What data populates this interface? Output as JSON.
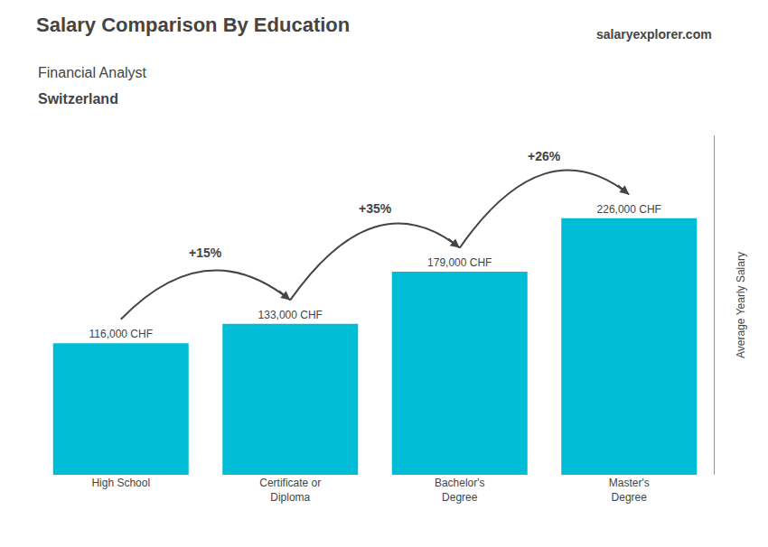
{
  "chart_data": {
    "type": "bar",
    "title": "Salary Comparison By Education",
    "subtitle": [
      "Financial Analyst",
      "Switzerland"
    ],
    "ylabel": "Average Yearly Salary",
    "categories": [
      "High School",
      "Certificate or\nDiploma",
      "Bachelor's\nDegree",
      "Master's\nDegree"
    ],
    "values": [
      116000,
      133000,
      179000,
      226000
    ],
    "value_labels": [
      "116,000 CHF",
      "133,000 CHF",
      "179,000 CHF",
      "226,000 CHF"
    ],
    "data_labels": true,
    "color": "#00bcd4",
    "ylim": [
      0,
      299000
    ],
    "grid": false,
    "tick_labels": "x",
    "annotations": [
      "+15%",
      "+35%",
      "+26%",
      "salaryexplorer.com"
    ]
  }
}
